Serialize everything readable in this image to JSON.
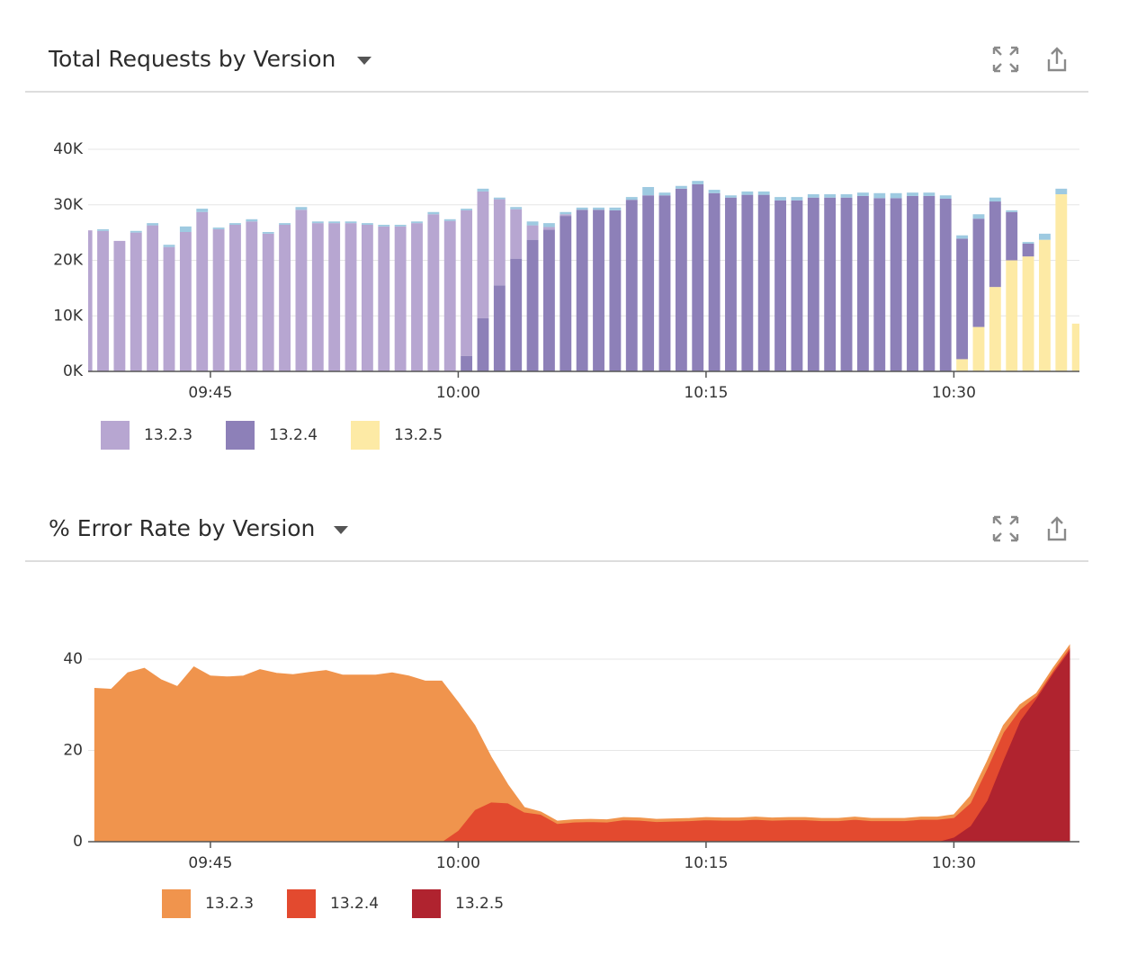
{
  "chart_data": [
    {
      "type": "bar",
      "stacked": true,
      "title": "Total Requests by Version",
      "x": [
        577,
        578,
        579,
        580,
        581,
        582,
        583,
        584,
        585,
        586,
        587,
        588,
        589,
        590,
        591,
        592,
        593,
        594,
        595,
        596,
        597,
        598,
        599,
        600,
        601,
        602,
        603,
        604,
        605,
        606,
        607,
        608,
        609,
        610,
        611,
        612,
        613,
        614,
        615,
        616,
        617,
        618,
        619,
        620,
        621,
        622,
        623,
        624,
        625,
        626,
        627,
        628,
        629,
        630,
        631,
        632,
        633,
        634,
        635,
        636,
        637
      ],
      "xlim": [
        577.6,
        637.6
      ],
      "xticks": [
        {
          "value": 585,
          "label": "09:45"
        },
        {
          "value": 600,
          "label": "10:00"
        },
        {
          "value": 615,
          "label": "10:15"
        },
        {
          "value": 630,
          "label": "10:30"
        }
      ],
      "ylim": [
        0,
        40000
      ],
      "yticks": [
        {
          "value": 0,
          "label": "0K"
        },
        {
          "value": 10000,
          "label": "10K"
        },
        {
          "value": 20000,
          "label": "20K"
        },
        {
          "value": 30000,
          "label": "30K"
        },
        {
          "value": 40000,
          "label": "40K"
        }
      ],
      "grid": true,
      "series": [
        {
          "name": "13.2.3",
          "color": "#b7a6d1",
          "values": [
            25400,
            25300,
            23500,
            25000,
            26300,
            22400,
            25100,
            28700,
            25600,
            26400,
            27000,
            24800,
            26400,
            29100,
            26700,
            26700,
            26700,
            26400,
            26100,
            26100,
            26700,
            28300,
            27100,
            26200,
            22800,
            15500,
            8900,
            2600,
            500,
            300,
            0,
            0,
            0,
            0,
            0,
            0,
            0,
            0,
            0,
            0,
            0,
            0,
            0,
            0,
            0,
            0,
            0,
            0,
            0,
            0,
            0,
            0,
            0,
            0,
            0,
            0,
            0,
            0,
            0,
            0,
            0
          ]
        },
        {
          "name": "13.2.4",
          "color": "#8d80b8",
          "values": [
            0,
            0,
            0,
            0,
            0,
            0,
            0,
            0,
            0,
            0,
            0,
            0,
            0,
            0,
            0,
            0,
            0,
            0,
            0,
            0,
            0,
            0,
            0,
            2800,
            9600,
            15500,
            20300,
            23700,
            25500,
            28000,
            29100,
            29100,
            29000,
            30900,
            31700,
            31700,
            32900,
            33700,
            32100,
            31300,
            31800,
            31800,
            30800,
            30800,
            31300,
            31300,
            31300,
            31600,
            31200,
            31200,
            31600,
            31600,
            31100,
            21700,
            19500,
            15400,
            8700,
            2300,
            0,
            0,
            0
          ]
        },
        {
          "name": "13.2.5",
          "color": "#fdeaa5",
          "values": [
            0,
            0,
            0,
            0,
            0,
            0,
            0,
            0,
            0,
            0,
            0,
            0,
            0,
            0,
            0,
            0,
            0,
            0,
            0,
            0,
            0,
            0,
            0,
            0,
            0,
            0,
            0,
            0,
            0,
            0,
            0,
            0,
            0,
            0,
            0,
            0,
            0,
            0,
            0,
            0,
            0,
            0,
            0,
            0,
            0,
            0,
            0,
            0,
            0,
            0,
            0,
            0,
            0,
            2200,
            8000,
            15200,
            20000,
            20700,
            23700,
            31900,
            8600
          ]
        },
        {
          "color": "#9ecae1",
          "values": [
            0,
            300,
            0,
            300,
            400,
            400,
            1000,
            600,
            300,
            300,
            400,
            300,
            300,
            500,
            300,
            300,
            300,
            300,
            300,
            300,
            300,
            400,
            300,
            300,
            500,
            300,
            400,
            700,
            700,
            400,
            400,
            400,
            500,
            500,
            1500,
            500,
            500,
            600,
            600,
            400,
            600,
            600,
            600,
            600,
            600,
            600,
            600,
            600,
            900,
            900,
            600,
            600,
            600,
            600,
            800,
            700,
            300,
            300,
            1100,
            1000,
            0
          ]
        }
      ]
    },
    {
      "type": "area",
      "stacked": true,
      "title": "% Error Rate by Version",
      "x": [
        578,
        579,
        580,
        581,
        582,
        583,
        584,
        585,
        586,
        587,
        588,
        589,
        590,
        591,
        592,
        593,
        594,
        595,
        596,
        597,
        598,
        599,
        600,
        601,
        602,
        603,
        604,
        605,
        606,
        607,
        608,
        609,
        610,
        611,
        612,
        613,
        614,
        615,
        616,
        617,
        618,
        619,
        620,
        621,
        622,
        623,
        624,
        625,
        626,
        627,
        628,
        629,
        630,
        631,
        632,
        633,
        634,
        635,
        636,
        637
      ],
      "xlim": [
        577.6,
        637.6
      ],
      "xticks": [
        {
          "value": 585,
          "label": "09:45"
        },
        {
          "value": 600,
          "label": "10:00"
        },
        {
          "value": 615,
          "label": "10:15"
        },
        {
          "value": 630,
          "label": "10:30"
        }
      ],
      "ylim": [
        0,
        45
      ],
      "yticks": [
        0,
        20,
        40
      ],
      "grid": true,
      "series": [
        {
          "name": "13.2.3",
          "color": "#f0944d",
          "values": [
            33.6,
            33.4,
            37.0,
            38.0,
            35.5,
            34.0,
            38.3,
            36.3,
            36.1,
            36.3,
            37.7,
            36.9,
            36.6,
            37.1,
            37.5,
            36.5,
            36.5,
            36.5,
            37.0,
            36.3,
            35.2,
            35.2,
            28.0,
            18.5,
            9.8,
            4.0,
            1.0,
            0.5,
            0.5,
            0.5,
            0.5,
            0.5,
            0.5,
            0.5,
            0.5,
            0.5,
            0.5,
            0.5,
            0.5,
            0.5,
            0.5,
            0.5,
            0.5,
            0.5,
            0.5,
            0.5,
            0.5,
            0.5,
            0.5,
            0.5,
            0.5,
            0.5,
            0.6,
            1.5,
            1.5,
            1.5,
            1.0,
            0.5,
            0.5,
            0.5
          ]
        },
        {
          "name": "13.2.4",
          "color": "#e34a2f",
          "values": [
            0,
            0,
            0,
            0,
            0,
            0,
            0,
            0,
            0,
            0,
            0,
            0,
            0,
            0,
            0,
            0,
            0,
            0,
            0,
            0,
            0,
            0,
            2.5,
            7.0,
            8.7,
            8.5,
            6.5,
            6.0,
            4.0,
            4.3,
            4.4,
            4.3,
            4.8,
            4.7,
            4.4,
            4.5,
            4.6,
            4.8,
            4.7,
            4.7,
            4.9,
            4.7,
            4.8,
            4.8,
            4.6,
            4.6,
            4.9,
            4.6,
            4.6,
            4.6,
            4.9,
            4.9,
            4.3,
            5.0,
            7.0,
            6.0,
            2.5,
            0.5,
            0.5,
            0.5
          ]
        },
        {
          "name": "13.2.5",
          "color": "#b0232f",
          "values": [
            0,
            0,
            0,
            0,
            0,
            0,
            0,
            0,
            0,
            0,
            0,
            0,
            0,
            0,
            0,
            0,
            0,
            0,
            0,
            0,
            0,
            0,
            0,
            0,
            0,
            0,
            0,
            0,
            0,
            0,
            0,
            0,
            0,
            0,
            0,
            0,
            0,
            0,
            0,
            0,
            0,
            0,
            0,
            0,
            0,
            0,
            0,
            0,
            0,
            0,
            0,
            0,
            1.0,
            3.5,
            9.0,
            18.0,
            26.5,
            31.5,
            37.0,
            42.0
          ]
        }
      ]
    }
  ]
}
